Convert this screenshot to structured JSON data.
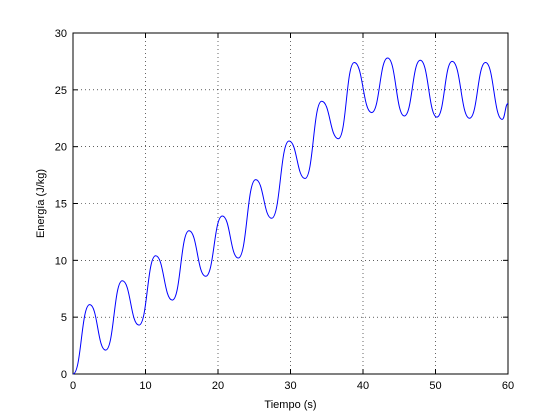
{
  "chart_data": {
    "type": "line",
    "xlabel": "Tiempo (s)",
    "ylabel": "Energía (J/kg)",
    "x": [
      0,
      2.3,
      4.5,
      6.8,
      9.1,
      11.4,
      13.7,
      16,
      18.3,
      20.6,
      22.8,
      25.2,
      27.4,
      29.8,
      32,
      34.3,
      36.6,
      38.8,
      41.2,
      43.4,
      45.7,
      47.9,
      50.2,
      52.3,
      54.7,
      56.9,
      59.2,
      60
    ],
    "series": [
      {
        "color": "#0000ff",
        "values": [
          0,
          6.1,
          2.1,
          8.2,
          4.3,
          10.4,
          6.5,
          12.6,
          8.6,
          13.9,
          10.2,
          17.1,
          13.7,
          20.5,
          17.2,
          24,
          20.7,
          27.4,
          23,
          27.8,
          22.7,
          27.6,
          22.6,
          27.5,
          22.5,
          27.4,
          22.4,
          23.8
        ]
      }
    ],
    "xlim": [
      0,
      60
    ],
    "ylim": [
      0,
      30
    ],
    "xticks": [
      0,
      10,
      20,
      30,
      40,
      50,
      60
    ],
    "yticks": [
      0,
      5,
      10,
      15,
      20,
      25,
      30
    ],
    "grid": true
  }
}
